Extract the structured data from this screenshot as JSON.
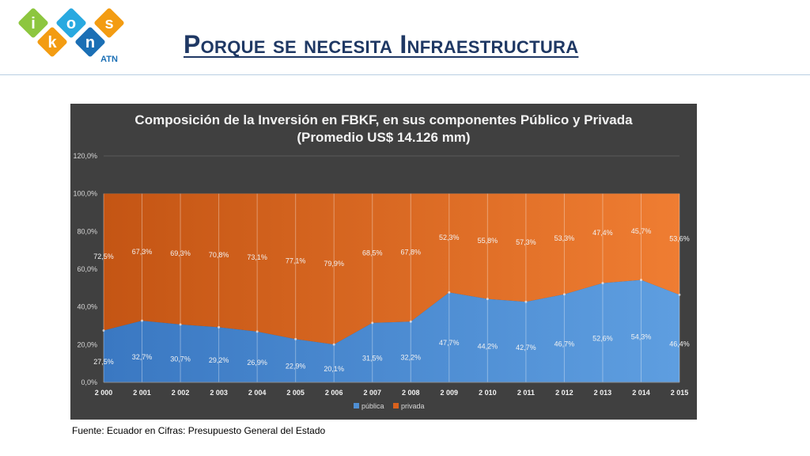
{
  "logo": {
    "letters": [
      "i",
      "k",
      "o",
      "n",
      "s"
    ],
    "sub": "ATN"
  },
  "slide": {
    "title": "Porque se necesita Infraestructura",
    "source": "Fuente: Ecuador en Cifras: Presupuesto General del Estado"
  },
  "colors": {
    "publica": "#4f8fd4",
    "privada": "#d9611c",
    "title": "#1f3864",
    "panel": "#404040"
  },
  "chart_data": {
    "type": "area",
    "title": "Composición de la Inversión en FBKF, en sus componentes Público y Privada",
    "subtitle": "(Promedio US$ 14.126 mm)",
    "x": [
      "2 000",
      "2 001",
      "2 002",
      "2 003",
      "2 004",
      "2 005",
      "2 006",
      "2 007",
      "2 008",
      "2 009",
      "2 010",
      "2 011",
      "2 012",
      "2 013",
      "2 014",
      "2 015"
    ],
    "series": [
      {
        "name": "pública",
        "values": [
          27.5,
          32.7,
          30.7,
          29.2,
          26.9,
          22.9,
          20.1,
          31.5,
          32.2,
          47.7,
          44.2,
          42.7,
          46.7,
          52.6,
          54.3,
          46.4
        ],
        "labels": [
          "27,5%",
          "32,7%",
          "30,7%",
          "29,2%",
          "26,9%",
          "22,9%",
          "20,1%",
          "31,5%",
          "32,2%",
          "47,7%",
          "44,2%",
          "42,7%",
          "46,7%",
          "52,6%",
          "54,3%",
          "46,4%"
        ]
      },
      {
        "name": "privada",
        "values": [
          72.5,
          67.3,
          69.3,
          70.8,
          73.1,
          77.1,
          79.9,
          68.5,
          67.8,
          52.3,
          55.8,
          57.3,
          53.3,
          47.4,
          45.7,
          53.6
        ],
        "labels": [
          "72,5%",
          "67,3%",
          "69,3%",
          "70,8%",
          "73,1%",
          "77,1%",
          "79,9%",
          "68,5%",
          "67,8%",
          "52,3%",
          "55,8%",
          "57,3%",
          "53,3%",
          "47,4%",
          "45,7%",
          "53,6%"
        ]
      }
    ],
    "stacked": true,
    "ylim": [
      0,
      120
    ],
    "yticks": [
      "0,0%",
      "20,0%",
      "40,0%",
      "60,0%",
      "80,0%",
      "100,0%",
      "120,0%"
    ],
    "grid": true,
    "legend": "bottom"
  }
}
